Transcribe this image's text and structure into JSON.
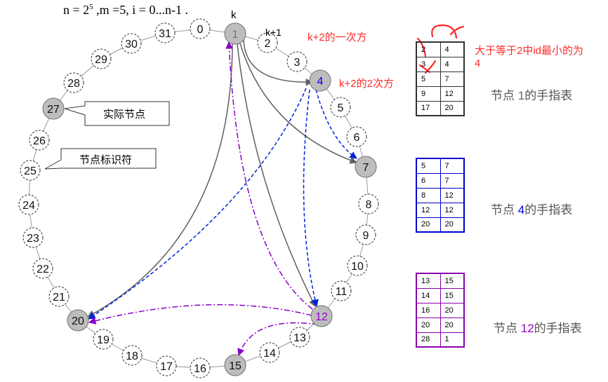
{
  "header": {
    "formula_n": "n = 2",
    "formula_exp": "5",
    "formula_rest": " ,m =5, i = 0...n-1 ."
  },
  "ring": {
    "ids": [
      "0",
      "1",
      "2",
      "3",
      "4",
      "5",
      "6",
      "7",
      "8",
      "9",
      "10",
      "11",
      "12",
      "13",
      "14",
      "15",
      "16",
      "17",
      "18",
      "19",
      "20",
      "21",
      "22",
      "23",
      "24",
      "25",
      "26",
      "27",
      "28",
      "29",
      "30",
      "31"
    ],
    "actual_nodes": [
      "1",
      "4",
      "7",
      "12",
      "15",
      "20",
      "27"
    ]
  },
  "labels": {
    "k": "k",
    "k_plus_1": "k+1",
    "k2_first": "k+2的一次方",
    "k2_second": "k+2的2次方",
    "actual_node_callout": "实际节点",
    "node_id_callout": "节点标识符",
    "note_line1": "大于等于2中id最小的为",
    "note_line2": "4"
  },
  "finger_tables": [
    {
      "caption_prefix": "节点 ",
      "caption_node": "1",
      "caption_suffix": "的手指表",
      "caption_color": "#666666",
      "border_color": "#333333",
      "rows": [
        [
          "2",
          "4"
        ],
        [
          "3",
          "4"
        ],
        [
          "5",
          "7"
        ],
        [
          "9",
          "12"
        ],
        [
          "17",
          "20"
        ]
      ]
    },
    {
      "caption_prefix": "节点 ",
      "caption_node": "4",
      "caption_suffix": "的手指表",
      "caption_color": "#0000dd",
      "border_color": "#0000cc",
      "rows": [
        [
          "5",
          "7"
        ],
        [
          "6",
          "7"
        ],
        [
          "8",
          "12"
        ],
        [
          "12",
          "12"
        ],
        [
          "20",
          "20"
        ]
      ]
    },
    {
      "caption_prefix": "节点 ",
      "caption_node": "12",
      "caption_suffix": "的手指表",
      "caption_color": "#9900cc",
      "border_color": "#8800aa",
      "rows": [
        [
          "13",
          "15"
        ],
        [
          "14",
          "15"
        ],
        [
          "16",
          "20"
        ],
        [
          "20",
          "20"
        ],
        [
          "28",
          "1"
        ]
      ]
    }
  ],
  "colors": {
    "actual_fill": "#bdbdbd",
    "gray_arrow": "#606060",
    "blue_arrow": "#0022dd",
    "purple_arrow": "#8a00c8",
    "annotation_red": "#ff2a2a",
    "node4_text": "#0000ee",
    "node12_text": "#9900cc"
  }
}
